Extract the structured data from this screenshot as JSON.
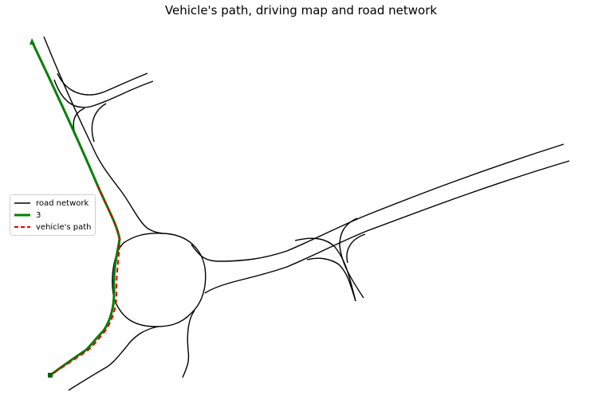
{
  "title": "Vehicle's path, driving map and road network",
  "legend": [
    {
      "label": "road network",
      "color": "#000000",
      "style": "solid"
    },
    {
      "label": "3",
      "color": "#008000",
      "style": "solid-thick"
    },
    {
      "label": "vehicle's path",
      "color": "#e00000",
      "style": "dashed"
    }
  ],
  "colors": {
    "road": "#000000",
    "route": "#008000",
    "path": "#e00000",
    "start_marker": "#006400"
  }
}
